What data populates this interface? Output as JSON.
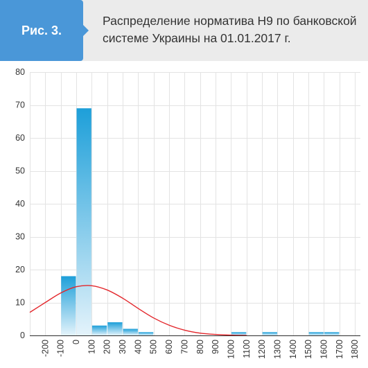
{
  "figure": {
    "label": "Рис. 3."
  },
  "colors": {
    "header_background": "#ebebeb",
    "badge": "#4a97d8",
    "bar_gradient_top": "#1d9fd9",
    "bar_gradient_bottom": "#e4f3fb",
    "curve": "#e3262b",
    "grid": "#e3e3e3",
    "axis": "#2b2b2b",
    "text": "#333333"
  },
  "chart_data": {
    "type": "bar",
    "title_lines": [
      "Распределение норматива Н9 по банковской",
      "системе Украины на 01.01.2017 г."
    ],
    "xlabel": "",
    "ylabel": "",
    "xlim": [
      -300,
      1835
    ],
    "ylim": [
      0,
      80
    ],
    "grid": true,
    "x_ticks": [
      -200,
      -100,
      0,
      100,
      200,
      300,
      400,
      500,
      600,
      700,
      800,
      900,
      1000,
      1100,
      1200,
      1300,
      1400,
      1500,
      1600,
      1700,
      1800
    ],
    "y_ticks": [
      0,
      10,
      20,
      30,
      40,
      50,
      60,
      70,
      80
    ],
    "bins": [
      {
        "from": -100,
        "to": 0,
        "value": 18
      },
      {
        "from": 0,
        "to": 100,
        "value": 69
      },
      {
        "from": 100,
        "to": 200,
        "value": 3
      },
      {
        "from": 200,
        "to": 300,
        "value": 4
      },
      {
        "from": 300,
        "to": 400,
        "value": 2
      },
      {
        "from": 400,
        "to": 500,
        "value": 1
      },
      {
        "from": 1000,
        "to": 1100,
        "value": 1
      },
      {
        "from": 1200,
        "to": 1300,
        "value": 1
      },
      {
        "from": 1500,
        "to": 1600,
        "value": 1
      },
      {
        "from": 1600,
        "to": 1700,
        "value": 1
      }
    ],
    "curve": {
      "type": "line",
      "x": [
        -300,
        -200,
        -100,
        0,
        100,
        200,
        300,
        400,
        500,
        600,
        700,
        800,
        900,
        1000,
        1100
      ],
      "y": [
        7.0,
        10.0,
        12.9,
        14.8,
        15.1,
        13.8,
        11.3,
        8.2,
        5.3,
        3.1,
        1.6,
        0.7,
        0.3,
        0.1,
        0.0
      ]
    }
  }
}
